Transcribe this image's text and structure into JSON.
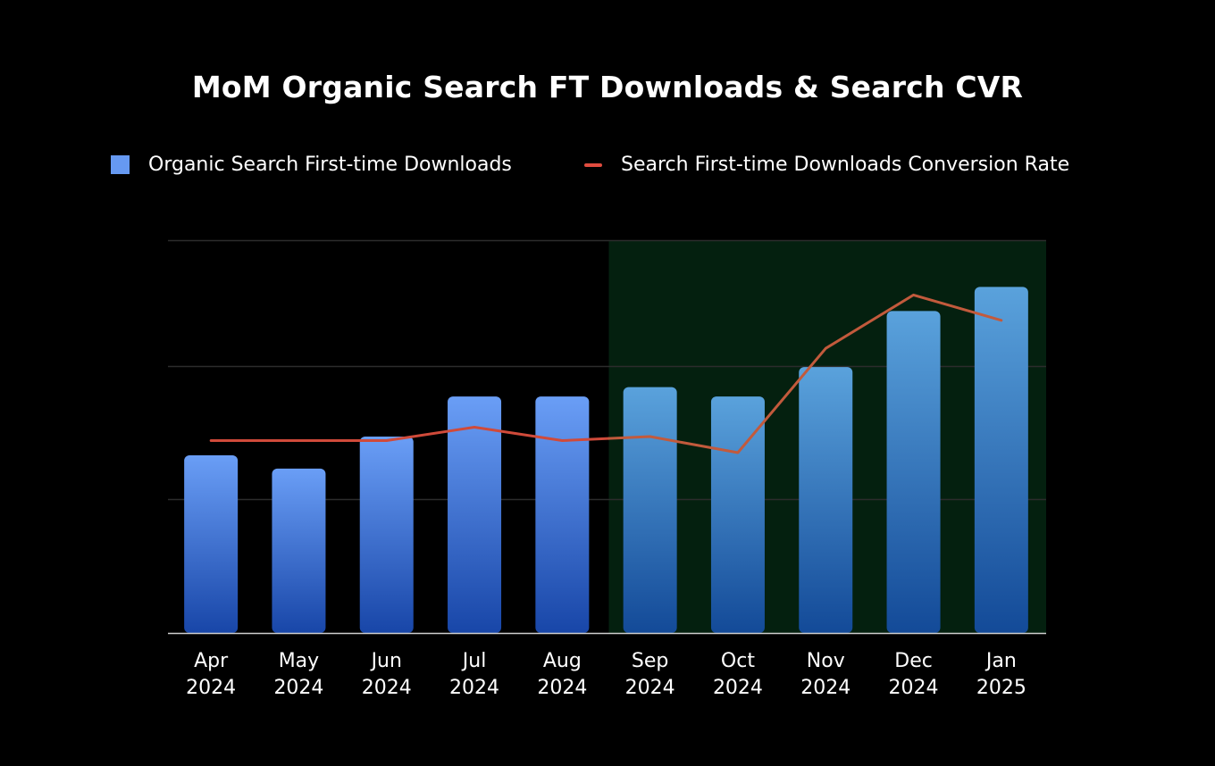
{
  "chart_data": {
    "type": "bar",
    "title": "MoM Organic Search FT Downloads & Search CVR",
    "categories": [
      {
        "month": "Apr",
        "year": "2024"
      },
      {
        "month": "May",
        "year": "2024"
      },
      {
        "month": "Jun",
        "year": "2024"
      },
      {
        "month": "Jul",
        "year": "2024"
      },
      {
        "month": "Aug",
        "year": "2024"
      },
      {
        "month": "Sep",
        "year": "2024"
      },
      {
        "month": "Oct",
        "year": "2024"
      },
      {
        "month": "Nov",
        "year": "2024"
      },
      {
        "month": "Dec",
        "year": "2024"
      },
      {
        "month": "Jan",
        "year": "2025"
      }
    ],
    "series": [
      {
        "name": "Organic Search First-time Downloads",
        "type": "bar",
        "values": [
          1.33,
          1.23,
          1.47,
          1.77,
          1.77,
          1.84,
          1.77,
          1.99,
          2.41,
          2.59
        ],
        "color": "#6699f2"
      },
      {
        "name": "Search First-time Downloads Conversion Rate",
        "type": "line",
        "values": [
          1.44,
          1.44,
          1.44,
          1.54,
          1.44,
          1.47,
          1.35,
          2.13,
          2.53,
          2.34
        ],
        "color": "#d04a3a"
      }
    ],
    "ylim": [
      0,
      2.94
    ],
    "y_gridlines": [
      1,
      2,
      2.94
    ],
    "highlight_range": {
      "from": "Sep 2024",
      "to": "Jan 2025",
      "color": "#04200f"
    },
    "xlabel": "",
    "ylabel": "",
    "legend": "top"
  }
}
